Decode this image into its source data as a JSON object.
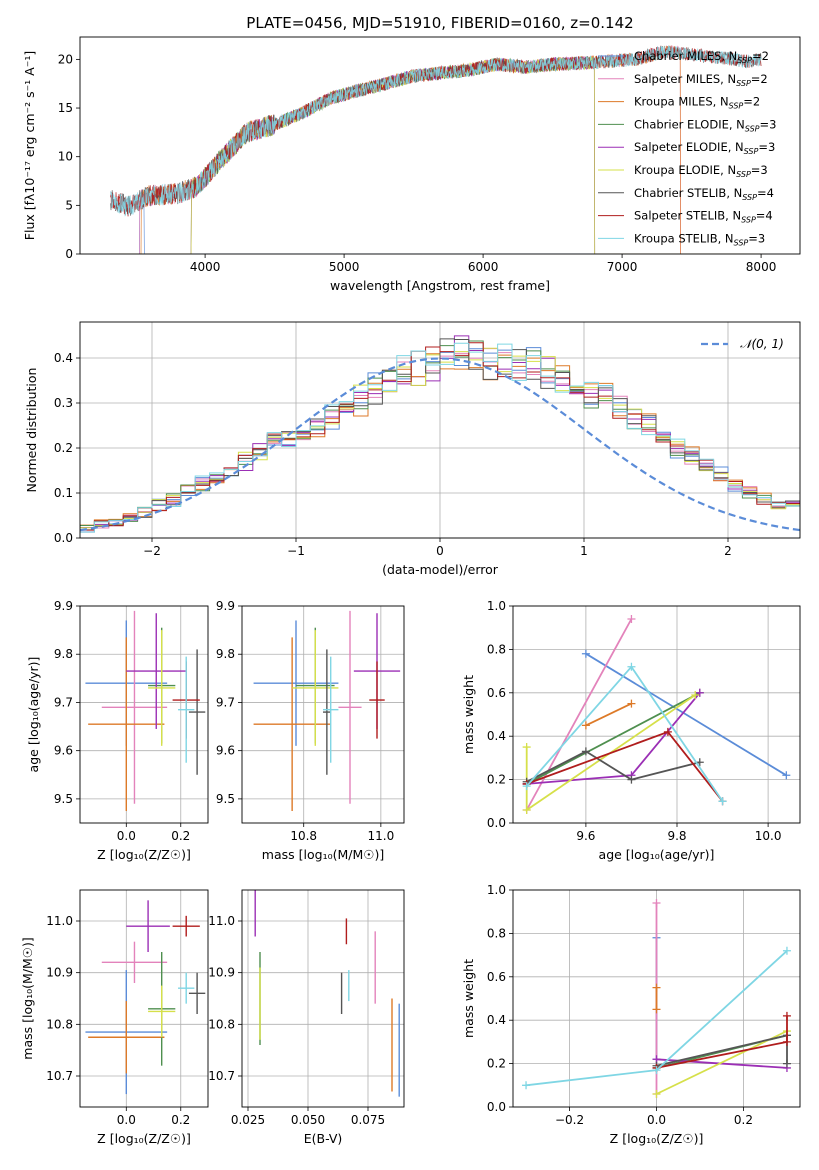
{
  "figure": {
    "title": "PLATE=0456, MJD=51910, FIBERID=0160, z=0.142"
  },
  "chart_data": [
    {
      "id": "spectrum",
      "type": "line",
      "xlabel": "wavelength [Angstrom, rest frame]",
      "ylabel": "Flux [fλ10⁻¹⁷ erg cm⁻² s⁻¹ A⁻¹]",
      "xlim": [
        3100,
        8280
      ],
      "ylim": [
        0,
        22.3
      ],
      "xticks": [
        4000,
        5000,
        6000,
        7000,
        8000
      ],
      "yticks": [
        0,
        5,
        10,
        15,
        20
      ],
      "grid": false,
      "legend_position": "top-right",
      "continuum": {
        "x": [
          3320,
          3450,
          3600,
          3800,
          3950,
          4100,
          4300,
          4500,
          4700,
          4900,
          5100,
          5300,
          5500,
          5700,
          5900,
          6100,
          6300,
          6500,
          6700,
          6900,
          7100,
          7300,
          7500,
          7700,
          7900,
          8000
        ],
        "y": [
          5.6,
          4.9,
          6.0,
          6.2,
          7.0,
          9.5,
          12.5,
          13.3,
          14.5,
          16.0,
          16.8,
          17.5,
          18.3,
          18.6,
          18.9,
          19.5,
          19.2,
          19.5,
          19.6,
          19.8,
          20.0,
          20.8,
          20.5,
          20.2,
          19.8,
          20.0
        ]
      },
      "series": [
        {
          "name": "Chabrier MILES, N_SSP=2",
          "label_main": "Chabrier MILES, N",
          "label_sub": "SSP",
          "label_tail": "=2",
          "color": "#5b8cd8",
          "cut": [
            3530,
            3560
          ]
        },
        {
          "name": "Salpeter MILES, N_SSP=2",
          "label_main": "Salpeter MILES, N",
          "label_sub": "SSP",
          "label_tail": "=2",
          "color": "#e383bb",
          "cut": [
            3530,
            7420
          ]
        },
        {
          "name": "Kroupa MILES, N_SSP=2",
          "label_main": "Kroupa MILES, N",
          "label_sub": "SSP",
          "label_tail": "=2",
          "color": "#dd7a28",
          "cut": [
            3540,
            7420
          ]
        },
        {
          "name": "Chabrier ELODIE, N_SSP=3",
          "label_main": "Chabrier ELODIE, N",
          "label_sub": "SSP",
          "label_tail": "=3",
          "color": "#4f8f4f",
          "cut": [
            3900,
            6800
          ]
        },
        {
          "name": "Salpeter ELODIE, N_SSP=3",
          "label_main": "Salpeter ELODIE, N",
          "label_sub": "SSP",
          "label_tail": "=3",
          "color": "#9b2fb5",
          "cut": [
            3900,
            6800
          ]
        },
        {
          "name": "Kroupa ELODIE, N_SSP=3",
          "label_main": "Kroupa ELODIE, N",
          "label_sub": "SSP",
          "label_tail": "=3",
          "color": "#d6e04a",
          "cut": [
            3900,
            6800
          ]
        },
        {
          "name": "Chabrier STELIB, N_SSP=4",
          "label_main": "Chabrier STELIB, N",
          "label_sub": "SSP",
          "label_tail": "=4",
          "color": "#555555",
          "cut": [
            3320,
            8000
          ]
        },
        {
          "name": "Salpeter STELIB, N_SSP=4",
          "label_main": "Salpeter STELIB, N",
          "label_sub": "SSP",
          "label_tail": "=4",
          "color": "#b01d1d",
          "cut": [
            3320,
            8000
          ]
        },
        {
          "name": "Kroupa STELIB, N_SSP=3",
          "label_main": "Kroupa STELIB, N",
          "label_sub": "SSP",
          "label_tail": "=3",
          "color": "#7fd6e4",
          "cut": [
            3320,
            8000
          ]
        }
      ]
    },
    {
      "id": "residuals",
      "type": "line",
      "xlabel": "(data-model)/error",
      "ylabel": "Normed distribution",
      "xlim": [
        -2.5,
        2.5
      ],
      "ylim": [
        0,
        0.48
      ],
      "xticks": [
        -2,
        -1,
        0,
        1,
        2
      ],
      "yticks": [
        0.0,
        0.1,
        0.2,
        0.3,
        0.4
      ],
      "grid": true,
      "legend": [
        "𝒩(0, 1)"
      ],
      "legend_position": "top-right",
      "gaussian": {
        "mean": 0,
        "sigma": 1,
        "color": "#5b8cd8"
      },
      "hist_bin_width": 0.1,
      "hist_base": [
        0.02,
        0.03,
        0.035,
        0.045,
        0.06,
        0.075,
        0.085,
        0.1,
        0.12,
        0.13,
        0.15,
        0.17,
        0.19,
        0.21,
        0.22,
        0.23,
        0.25,
        0.27,
        0.3,
        0.31,
        0.33,
        0.35,
        0.37,
        0.38,
        0.39,
        0.4,
        0.41,
        0.4,
        0.395,
        0.39,
        0.385,
        0.38,
        0.37,
        0.36,
        0.35,
        0.33,
        0.31,
        0.29,
        0.27,
        0.25,
        0.22,
        0.2,
        0.18,
        0.16,
        0.14,
        0.12,
        0.1,
        0.09,
        0.08,
        0.07
      ]
    },
    {
      "id": "age-vs-Z",
      "type": "scatter",
      "xlabel": "Z [log₁₀(Z/Z☉)]",
      "ylabel": "age  [log₁₀(age/yr)]",
      "xlim": [
        -0.17,
        0.3
      ],
      "ylim": [
        9.45,
        9.9
      ],
      "xticks": [
        0.0,
        0.2
      ],
      "yticks": [
        9.5,
        9.6,
        9.7,
        9.8,
        9.9
      ],
      "grid": true,
      "points": [
        {
          "color": "#5b8cd8",
          "x": 0.0,
          "xerr": 0.15,
          "y": 9.74,
          "yerr": 0.13
        },
        {
          "color": "#e383bb",
          "x": 0.03,
          "xerr": 0.12,
          "y": 9.69,
          "yerr": 0.2
        },
        {
          "color": "#dd7a28",
          "x": 0.0,
          "xerr": 0.14,
          "y": 9.655,
          "yerr": 0.18
        },
        {
          "color": "#4f8f4f",
          "x": 0.13,
          "xerr": 0.05,
          "y": 9.735,
          "yerr": 0.12
        },
        {
          "color": "#9b2fb5",
          "x": 0.11,
          "xerr": 0.11,
          "y": 9.765,
          "yerr": 0.12
        },
        {
          "color": "#d6e04a",
          "x": 0.13,
          "xerr": 0.05,
          "y": 9.73,
          "yerr": 0.12
        },
        {
          "color": "#555555",
          "x": 0.26,
          "xerr": 0.03,
          "y": 9.68,
          "yerr": 0.13
        },
        {
          "color": "#b01d1d",
          "x": 0.22,
          "xerr": 0.05,
          "y": 9.705,
          "yerr": 0.08
        },
        {
          "color": "#7fd6e4",
          "x": 0.22,
          "xerr": 0.03,
          "y": 9.685,
          "yerr": 0.11
        }
      ]
    },
    {
      "id": "age-vs-mass",
      "type": "scatter",
      "xlabel": "mass [log₁₀(M/M☉)]",
      "ylabel": "",
      "xlim": [
        10.64,
        11.06
      ],
      "ylim": [
        9.45,
        9.9
      ],
      "xticks": [
        10.8,
        11.0
      ],
      "yticks": [
        9.5,
        9.6,
        9.7,
        9.8,
        9.9
      ],
      "grid": true,
      "points": [
        {
          "color": "#5b8cd8",
          "x": 10.78,
          "xerr": 0.11,
          "y": 9.74,
          "yerr": 0.13
        },
        {
          "color": "#e383bb",
          "x": 10.92,
          "xerr": 0.03,
          "y": 9.69,
          "yerr": 0.2
        },
        {
          "color": "#dd7a28",
          "x": 10.77,
          "xerr": 0.1,
          "y": 9.655,
          "yerr": 0.18
        },
        {
          "color": "#4f8f4f",
          "x": 10.83,
          "xerr": 0.05,
          "y": 9.735,
          "yerr": 0.12
        },
        {
          "color": "#9b2fb5",
          "x": 10.99,
          "xerr": 0.06,
          "y": 9.765,
          "yerr": 0.12
        },
        {
          "color": "#d6e04a",
          "x": 10.83,
          "xerr": 0.06,
          "y": 9.73,
          "yerr": 0.12
        },
        {
          "color": "#555555",
          "x": 10.86,
          "xerr": 0.01,
          "y": 9.68,
          "yerr": 0.13
        },
        {
          "color": "#b01d1d",
          "x": 10.99,
          "xerr": 0.02,
          "y": 9.705,
          "yerr": 0.08
        },
        {
          "color": "#7fd6e4",
          "x": 10.87,
          "xerr": 0.02,
          "y": 9.685,
          "yerr": 0.11
        }
      ]
    },
    {
      "id": "weight-vs-age",
      "type": "line",
      "xlabel": "age  [log₁₀(age/yr)]",
      "ylabel": "mass weight",
      "xlim": [
        9.44,
        10.07
      ],
      "ylim": [
        0,
        1.0
      ],
      "xticks": [
        9.6,
        9.8,
        10.0
      ],
      "yticks": [
        0.0,
        0.2,
        0.4,
        0.6,
        0.8,
        1.0
      ],
      "grid": true,
      "series": [
        {
          "color": "#5b8cd8",
          "x": [
            9.6,
            10.04
          ],
          "y": [
            0.78,
            0.22
          ]
        },
        {
          "color": "#e383bb",
          "x": [
            9.47,
            9.7
          ],
          "y": [
            0.06,
            0.94
          ]
        },
        {
          "color": "#dd7a28",
          "x": [
            9.6,
            9.7
          ],
          "y": [
            0.45,
            0.55
          ]
        },
        {
          "color": "#4f8f4f",
          "x": [
            9.47,
            9.85
          ],
          "y": [
            0.18,
            0.6
          ]
        },
        {
          "color": "#9b2fb5",
          "x": [
            9.47,
            9.7,
            9.85
          ],
          "y": [
            0.18,
            0.22,
            0.6
          ]
        },
        {
          "color": "#d6e04a",
          "x": [
            9.47,
            9.47,
            9.84
          ],
          "y": [
            0.35,
            0.06,
            0.59
          ]
        },
        {
          "color": "#555555",
          "x": [
            9.47,
            9.6,
            9.7,
            9.85
          ],
          "y": [
            0.19,
            0.33,
            0.2,
            0.28
          ]
        },
        {
          "color": "#b01d1d",
          "x": [
            9.47,
            9.78,
            9.9
          ],
          "y": [
            0.18,
            0.42,
            0.1
          ]
        },
        {
          "color": "#7fd6e4",
          "x": [
            9.47,
            9.7,
            9.9
          ],
          "y": [
            0.17,
            0.72,
            0.1
          ]
        }
      ]
    },
    {
      "id": "mass-vs-Z",
      "type": "scatter",
      "xlabel": "Z [log₁₀(Z/Z☉)]",
      "ylabel": "mass [log₁₀(M/M☉)]",
      "xlim": [
        -0.17,
        0.3
      ],
      "ylim": [
        10.64,
        11.06
      ],
      "xticks": [
        0.0,
        0.2
      ],
      "yticks": [
        10.7,
        10.8,
        10.9,
        11.0
      ],
      "grid": true,
      "points": [
        {
          "color": "#5b8cd8",
          "x": 0.0,
          "xerr": 0.15,
          "y": 10.785,
          "yerr": 0.12
        },
        {
          "color": "#e383bb",
          "x": 0.03,
          "xerr": 0.12,
          "y": 10.92,
          "yerr": 0.04
        },
        {
          "color": "#dd7a28",
          "x": 0.0,
          "xerr": 0.14,
          "y": 10.775,
          "yerr": 0.07
        },
        {
          "color": "#4f8f4f",
          "x": 0.13,
          "xerr": 0.05,
          "y": 10.83,
          "yerr": 0.11
        },
        {
          "color": "#9b2fb5",
          "x": 0.08,
          "xerr": 0.08,
          "y": 10.99,
          "yerr": 0.05
        },
        {
          "color": "#d6e04a",
          "x": 0.13,
          "xerr": 0.05,
          "y": 10.825,
          "yerr": 0.05
        },
        {
          "color": "#555555",
          "x": 0.26,
          "xerr": 0.03,
          "y": 10.86,
          "yerr": 0.04
        },
        {
          "color": "#b01d1d",
          "x": 0.22,
          "xerr": 0.05,
          "y": 10.99,
          "yerr": 0.02
        },
        {
          "color": "#7fd6e4",
          "x": 0.22,
          "xerr": 0.03,
          "y": 10.87,
          "yerr": 0.03
        }
      ]
    },
    {
      "id": "mass-vs-ebv",
      "type": "scatter",
      "xlabel": "E(B-V)",
      "ylabel": "",
      "xlim": [
        0.0225,
        0.09
      ],
      "ylim": [
        10.64,
        11.06
      ],
      "xticks": [
        0.025,
        0.05,
        0.075
      ],
      "xticklabels": [
        "0.025",
        "0.050",
        "0.075"
      ],
      "yticks": [
        10.7,
        10.8,
        10.9,
        11.0
      ],
      "grid": true,
      "points": [
        {
          "color": "#5b8cd8",
          "x": 0.088,
          "y": 10.75,
          "yerr": 0.09
        },
        {
          "color": "#e383bb",
          "x": 0.078,
          "y": 10.91,
          "yerr": 0.07
        },
        {
          "color": "#dd7a28",
          "x": 0.085,
          "y": 10.76,
          "yerr": 0.09
        },
        {
          "color": "#4f8f4f",
          "x": 0.03,
          "y": 10.85,
          "yerr": 0.09
        },
        {
          "color": "#9b2fb5",
          "x": 0.028,
          "y": 11.05,
          "yerr": 0.08
        },
        {
          "color": "#d6e04a",
          "x": 0.03,
          "y": 10.84,
          "yerr": 0.07
        },
        {
          "color": "#555555",
          "x": 0.064,
          "y": 10.86,
          "yerr": 0.04
        },
        {
          "color": "#b01d1d",
          "x": 0.066,
          "y": 10.98,
          "yerr": 0.025
        },
        {
          "color": "#7fd6e4",
          "x": 0.067,
          "y": 10.875,
          "yerr": 0.03
        }
      ]
    },
    {
      "id": "weight-vs-Z",
      "type": "line",
      "xlabel": "Z [log₁₀(Z/Z☉)]",
      "ylabel": "mass weight",
      "xlim": [
        -0.33,
        0.33
      ],
      "ylim": [
        0,
        1.0
      ],
      "xticks": [
        -0.2,
        0.0,
        0.2
      ],
      "yticks": [
        0.0,
        0.2,
        0.4,
        0.6,
        0.8,
        1.0
      ],
      "grid": true,
      "series": [
        {
          "color": "#5b8cd8",
          "x": [
            0.0,
            0.0
          ],
          "y": [
            0.78,
            0.22
          ]
        },
        {
          "color": "#e383bb",
          "x": [
            0.0,
            0.0
          ],
          "y": [
            0.94,
            0.06
          ]
        },
        {
          "color": "#dd7a28",
          "x": [
            0.0,
            0.0
          ],
          "y": [
            0.45,
            0.55
          ]
        },
        {
          "color": "#4f8f4f",
          "x": [
            0.0,
            0.3
          ],
          "y": [
            0.18,
            0.33
          ]
        },
        {
          "color": "#9b2fb5",
          "x": [
            0.0,
            0.3
          ],
          "y": [
            0.22,
            0.18
          ]
        },
        {
          "color": "#d6e04a",
          "x": [
            0.0,
            0.3
          ],
          "y": [
            0.06,
            0.35
          ]
        },
        {
          "color": "#555555",
          "x": [
            0.0,
            0.3,
            0.3
          ],
          "y": [
            0.19,
            0.33,
            0.2
          ]
        },
        {
          "color": "#b01d1d",
          "x": [
            0.0,
            0.3,
            0.3
          ],
          "y": [
            0.18,
            0.3,
            0.42
          ]
        },
        {
          "color": "#7fd6e4",
          "x": [
            -0.3,
            0.0,
            0.3
          ],
          "y": [
            0.1,
            0.17,
            0.72
          ]
        }
      ]
    }
  ]
}
